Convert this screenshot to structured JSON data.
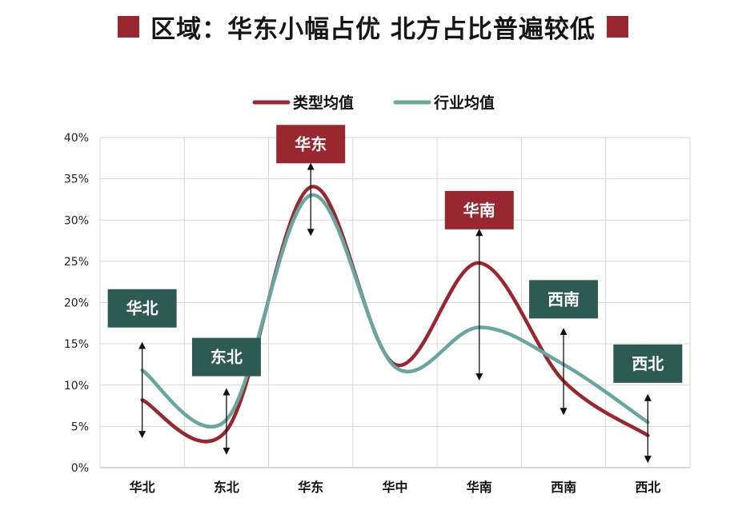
{
  "title": "区域：华东小幅占优 北方占比普遍较低",
  "colors": {
    "type_series": "#98272f",
    "industry_series": "#6aa6a0",
    "badge_red": "#98272f",
    "badge_green": "#2d5a52",
    "grid": "#d6d6d6"
  },
  "chart_data": {
    "type": "line",
    "categories": [
      "华北",
      "东北",
      "华东",
      "华中",
      "华南",
      "西南",
      "西北"
    ],
    "series": [
      {
        "name": "类型均值",
        "values": [
          8.2,
          4.5,
          34.0,
          12.5,
          24.8,
          10.5,
          3.9
        ]
      },
      {
        "name": "行业均值",
        "values": [
          11.8,
          5.8,
          33.0,
          12.2,
          17.0,
          12.5,
          5.5
        ]
      }
    ],
    "ylim": [
      0,
      40
    ],
    "yticks": [
      "0%",
      "5%",
      "10%",
      "15%",
      "20%",
      "25%",
      "30%",
      "35%",
      "40%"
    ],
    "legend_position": "top-center",
    "grid": true,
    "annotations": [
      {
        "label": "华北",
        "category": 0,
        "style": "green",
        "arrow_from": 14.8,
        "arrow_to": 4.0,
        "badge_value": 19.3
      },
      {
        "label": "东北",
        "category": 1,
        "style": "green",
        "arrow_from": 9.2,
        "arrow_to": 2.0,
        "badge_value": 13.4
      },
      {
        "label": "华东",
        "category": 2,
        "style": "red",
        "arrow_from": 36.5,
        "arrow_to": 28.5,
        "badge_value": 39.2
      },
      {
        "label": "华南",
        "category": 4,
        "style": "red",
        "arrow_from": 28.5,
        "arrow_to": 11.0,
        "badge_value": 31.2
      },
      {
        "label": "西南",
        "category": 5,
        "style": "green",
        "arrow_from": 16.5,
        "arrow_to": 6.8,
        "badge_value": 20.4
      },
      {
        "label": "西北",
        "category": 6,
        "style": "green",
        "arrow_from": 8.5,
        "arrow_to": 1.0,
        "badge_value": 12.6
      }
    ]
  }
}
